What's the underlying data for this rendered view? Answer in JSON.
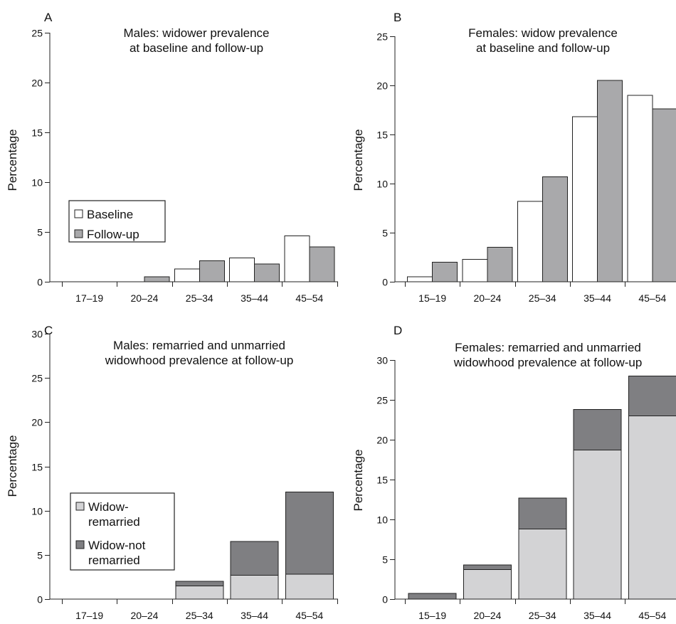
{
  "figure": {
    "colors": {
      "baseline": "#ffffff",
      "followup": "#a9a9ab",
      "remarried": "#d3d3d5",
      "not_remarried": "#7f7f82",
      "axis": "#222222"
    }
  },
  "chart_data": [
    {
      "panel": "A",
      "type": "bar",
      "title": [
        "Males: widower prevalence",
        "at baseline and follow-up"
      ],
      "xlabel": "",
      "ylabel": "Percentage",
      "categories": [
        "17–19",
        "20–24",
        "25–34",
        "35–44",
        "45–54"
      ],
      "ylim": [
        0,
        25
      ],
      "yticks": [
        0,
        5,
        10,
        15,
        20,
        25
      ],
      "grid": false,
      "stacked": false,
      "legend": {
        "placement": "middle-left",
        "lines": [
          [
            "Baseline"
          ],
          [
            "Follow-up"
          ]
        ]
      },
      "series": [
        {
          "name": "Baseline",
          "color": "#ffffff",
          "values": [
            0,
            0,
            1.3,
            2.4,
            4.6
          ]
        },
        {
          "name": "Follow-up",
          "color": "#a9a9ab",
          "values": [
            0,
            0.5,
            2.1,
            1.8,
            3.5
          ]
        }
      ]
    },
    {
      "panel": "B",
      "type": "bar",
      "title": [
        "Females: widow prevalence",
        "at baseline and follow-up"
      ],
      "xlabel": "",
      "ylabel": "Percentage",
      "categories": [
        "15–19",
        "20–24",
        "25–34",
        "35–44",
        "45–54"
      ],
      "ylim": [
        0,
        25
      ],
      "yticks": [
        0,
        5,
        10,
        15,
        20,
        25
      ],
      "grid": false,
      "stacked": false,
      "legend": null,
      "series": [
        {
          "name": "Baseline",
          "color": "#ffffff",
          "values": [
            0.5,
            2.3,
            8.2,
            16.8,
            19.0
          ]
        },
        {
          "name": "Follow-up",
          "color": "#a9a9ab",
          "values": [
            2.0,
            3.5,
            10.7,
            20.5,
            17.6
          ]
        }
      ]
    },
    {
      "panel": "C",
      "type": "bar",
      "title": [
        "Males: remarried and unmarried",
        "widowhood prevalence at follow-up"
      ],
      "xlabel": "",
      "ylabel": "Percentage",
      "categories": [
        "17–19",
        "20–24",
        "25–34",
        "35–44",
        "45–54"
      ],
      "ylim": [
        0,
        30
      ],
      "yticks": [
        0,
        5,
        10,
        15,
        20,
        25,
        30
      ],
      "grid": false,
      "stacked": true,
      "legend": {
        "placement": "bottom-left",
        "lines": [
          [
            "Widow-",
            "remarried"
          ],
          [
            "Widow-not",
            "remarried"
          ]
        ]
      },
      "series": [
        {
          "name": "Widow-remarried",
          "color": "#d3d3d5",
          "values": [
            0,
            0,
            1.5,
            2.7,
            2.8
          ]
        },
        {
          "name": "Widow-not remarried",
          "color": "#7f7f82",
          "values": [
            0,
            0,
            0.5,
            3.8,
            9.3
          ]
        }
      ]
    },
    {
      "panel": "D",
      "type": "bar",
      "title": [
        "Females: remarried and unmarried",
        "widowhood prevalence at follow-up"
      ],
      "xlabel": "",
      "ylabel": "Percentage",
      "categories": [
        "15–19",
        "20–24",
        "25–34",
        "35–44",
        "45–54"
      ],
      "ylim": [
        0,
        30
      ],
      "yticks": [
        0,
        5,
        10,
        15,
        20,
        25,
        30
      ],
      "grid": false,
      "stacked": true,
      "legend": null,
      "series": [
        {
          "name": "Widow-remarried",
          "color": "#d3d3d5",
          "values": [
            0,
            3.7,
            8.8,
            18.7,
            23.0
          ]
        },
        {
          "name": "Widow-not remarried",
          "color": "#7f7f82",
          "values": [
            0.7,
            0.6,
            3.9,
            5.1,
            5.0
          ]
        }
      ]
    }
  ]
}
